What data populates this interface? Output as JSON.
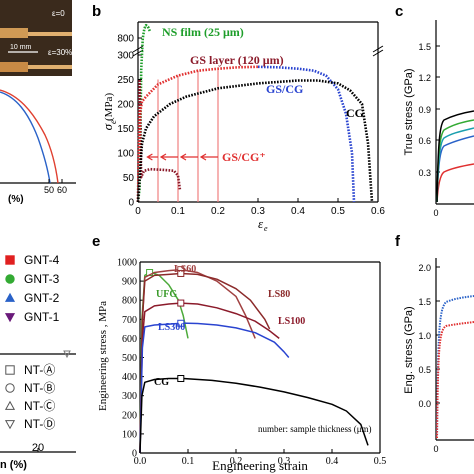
{
  "panel_letters": {
    "b": "b",
    "c": "c",
    "e": "e",
    "f": "f"
  },
  "panel_a": {
    "eps0": "ε=0",
    "eps30": "ε=30%",
    "scale": "10 mm",
    "x_ticks": [
      "50",
      "60"
    ],
    "x_label_frag": "(%)"
  },
  "panel_d": {
    "x_tick": "20",
    "x_label_frag": "n (%)",
    "legend_gnt": [
      {
        "label": "GNT-4",
        "color": "#e02020",
        "marker": "square"
      },
      {
        "label": "GNT-3",
        "color": "#33aa33",
        "marker": "circle"
      },
      {
        "label": "GNT-2",
        "color": "#2a62c8",
        "marker": "triangle-up"
      },
      {
        "label": "GNT-1",
        "color": "#6a1a7a",
        "marker": "triangle-down"
      }
    ],
    "legend_nt": [
      {
        "label": "NT-Ⓐ",
        "marker": "square"
      },
      {
        "label": "NT-Ⓑ",
        "marker": "circle"
      },
      {
        "label": "NT-Ⓒ",
        "marker": "triangle-up"
      },
      {
        "label": "NT-Ⓓ",
        "marker": "triangle-down"
      }
    ]
  },
  "panel_c": {
    "ylabel": "True stress (GPa)",
    "x_tick": "0"
  },
  "panel_f": {
    "ylabel": "Eng. stress (GPa)",
    "x_tick": "0"
  },
  "chart_data": [
    {
      "type": "line",
      "panel": "b",
      "xlabel": "ε_e",
      "ylabel": "σ_e (MPa)",
      "xlim": [
        0,
        0.6
      ],
      "ylim": [
        0,
        850
      ],
      "y_break": [
        330,
        760
      ],
      "x_ticks": [
        "0",
        "0.1",
        "0.2",
        "0.3",
        "0.4",
        "0.5",
        "0.6"
      ],
      "y_ticks": [
        "0",
        "50",
        "100",
        "150",
        "200",
        "250",
        "300",
        "800"
      ],
      "annotations": [
        "NS film (25 μm)",
        "GS layer (120 μm)",
        "GS/CG",
        "CG",
        "GS/CG⁺"
      ],
      "series": [
        {
          "name": "NS film (25 μm)",
          "color": "#1e9e2a",
          "x": [
            0,
            0.004,
            0.008,
            0.012,
            0.016,
            0.02,
            0.025,
            0.03
          ],
          "y": [
            0,
            330,
            700,
            800,
            830,
            840,
            835,
            820
          ]
        },
        {
          "name": "GS layer (120 μm)",
          "color": "#8b1a2a",
          "x": [
            0,
            0.004,
            0.008,
            0.015,
            0.03,
            0.06,
            0.09,
            0.1,
            0.105
          ],
          "y": [
            0,
            250,
            365,
            385,
            390,
            388,
            385,
            370,
            325
          ]
        },
        {
          "name": "GS/CG",
          "color": "#e03030",
          "x": [
            0,
            0.005,
            0.01,
            0.02,
            0.05,
            0.1,
            0.15,
            0.2,
            0.25,
            0.3
          ],
          "y": [
            0,
            180,
            205,
            215,
            240,
            258,
            268,
            272,
            275,
            276
          ]
        },
        {
          "name": "GS/CG",
          "color": "#2a44d0",
          "x": [
            0.3,
            0.35,
            0.4,
            0.44,
            0.47,
            0.5,
            0.52,
            0.535,
            0.54
          ],
          "y": [
            276,
            275,
            272,
            268,
            258,
            230,
            180,
            100,
            0
          ]
        },
        {
          "name": "CG",
          "color": "#000000",
          "x": [
            0,
            0.01,
            0.02,
            0.04,
            0.08,
            0.12,
            0.2,
            0.3,
            0.4,
            0.45,
            0.5,
            0.53,
            0.56,
            0.575,
            0.585
          ],
          "y": [
            0,
            120,
            150,
            175,
            200,
            215,
            232,
            242,
            248,
            248,
            242,
            228,
            200,
            120,
            0
          ]
        }
      ],
      "markers": {
        "name": "GS/CG⁺",
        "color": "#e03030",
        "x": [
          0.05,
          0.1,
          0.15,
          0.2
        ],
        "y": [
          250,
          258,
          268,
          272
        ]
      }
    },
    {
      "type": "line",
      "panel": "e",
      "xlabel": "Engineering strain",
      "ylabel": "Engineering stress , MPa",
      "xlim": [
        0,
        0.5
      ],
      "ylim": [
        0,
        1000
      ],
      "x_ticks": [
        "0.0",
        "0.1",
        "0.2",
        "0.3",
        "0.4",
        "0.5"
      ],
      "y_ticks": [
        "0",
        "100",
        "200",
        "300",
        "400",
        "500",
        "600",
        "700",
        "800",
        "900",
        "1000"
      ],
      "annotations": [
        "LS60",
        "LS80",
        "LS100",
        "UFG",
        "LS300",
        "CG",
        "number: sample thickness (μm)"
      ],
      "series": [
        {
          "name": "UFG",
          "color": "#4caa3a",
          "x": [
            0,
            0.004,
            0.01,
            0.02,
            0.025,
            0.04,
            0.06,
            0.08,
            0.09,
            0.1
          ],
          "y": [
            0,
            700,
            930,
            945,
            945,
            930,
            880,
            800,
            720,
            600
          ]
        },
        {
          "name": "LS60",
          "color": "#a04040",
          "x": [
            0,
            0.005,
            0.01,
            0.03,
            0.06,
            0.085,
            0.12,
            0.16,
            0.2,
            0.22,
            0.24
          ],
          "y": [
            0,
            700,
            920,
            945,
            955,
            960,
            945,
            900,
            820,
            720,
            600
          ]
        },
        {
          "name": "LS80",
          "color": "#8b2a2a",
          "x": [
            0,
            0.005,
            0.01,
            0.03,
            0.06,
            0.085,
            0.12,
            0.16,
            0.2,
            0.23,
            0.26,
            0.27
          ],
          "y": [
            0,
            700,
            900,
            930,
            935,
            940,
            935,
            910,
            860,
            800,
            700,
            650
          ]
        },
        {
          "name": "LS100",
          "color": "#8b1a2a",
          "x": [
            0,
            0.005,
            0.01,
            0.03,
            0.06,
            0.085,
            0.12,
            0.16,
            0.2,
            0.24,
            0.27,
            0.29
          ],
          "y": [
            0,
            600,
            740,
            770,
            780,
            785,
            780,
            760,
            730,
            690,
            640,
            600
          ]
        },
        {
          "name": "LS300",
          "color": "#2a44d0",
          "x": [
            0,
            0.005,
            0.01,
            0.03,
            0.06,
            0.09,
            0.12,
            0.16,
            0.2,
            0.24,
            0.28,
            0.3,
            0.31
          ],
          "y": [
            0,
            550,
            660,
            670,
            675,
            680,
            678,
            670,
            655,
            630,
            580,
            530,
            500
          ]
        },
        {
          "name": "CG",
          "color": "#000000",
          "x": [
            0,
            0.004,
            0.01,
            0.03,
            0.06,
            0.09,
            0.15,
            0.2,
            0.25,
            0.3,
            0.35,
            0.4,
            0.43,
            0.46,
            0.475
          ],
          "y": [
            0,
            300,
            370,
            385,
            390,
            390,
            380,
            365,
            345,
            320,
            290,
            255,
            220,
            150,
            40
          ]
        }
      ],
      "markers": {
        "color_source": "series",
        "x": 0.085
      }
    }
  ]
}
